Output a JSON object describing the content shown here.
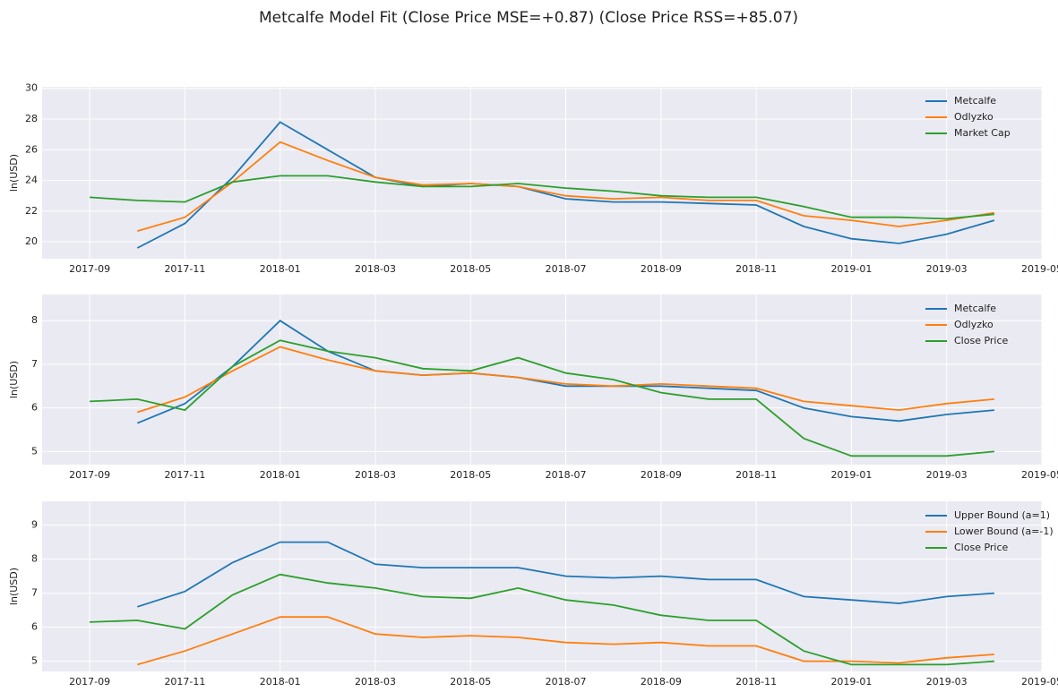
{
  "title": "Metcalfe Model Fit (Close Price MSE=+0.87) (Close Price RSS=+85.07)",
  "chart_data": [
    {
      "type": "line",
      "ylabel": "ln(USD)",
      "x": [
        "2017-09",
        "2017-10",
        "2017-11",
        "2017-12",
        "2018-01",
        "2018-02",
        "2018-03",
        "2018-04",
        "2018-05",
        "2018-06",
        "2018-07",
        "2018-08",
        "2018-09",
        "2018-10",
        "2018-11",
        "2018-12",
        "2019-01",
        "2019-02",
        "2019-03",
        "2019-04"
      ],
      "series": [
        {
          "name": "Metcalfe",
          "color": "#1f77b4",
          "values": [
            null,
            19.6,
            21.2,
            24.2,
            27.8,
            26.0,
            24.2,
            23.6,
            23.8,
            23.6,
            22.8,
            22.6,
            22.6,
            22.5,
            22.4,
            21.0,
            20.2,
            19.9,
            20.5,
            21.4
          ]
        },
        {
          "name": "Odlyzko",
          "color": "#ff7f0e",
          "values": [
            null,
            20.7,
            21.6,
            23.9,
            26.5,
            25.3,
            24.2,
            23.7,
            23.8,
            23.6,
            23.0,
            22.8,
            22.9,
            22.7,
            22.7,
            21.7,
            21.4,
            21.0,
            21.4,
            21.9
          ]
        },
        {
          "name": "Market Cap",
          "color": "#2ca02c",
          "values": [
            22.9,
            22.7,
            22.6,
            23.9,
            24.3,
            24.3,
            23.9,
            23.6,
            23.6,
            23.8,
            23.5,
            23.3,
            23.0,
            22.9,
            22.9,
            22.3,
            21.6,
            21.6,
            21.5,
            21.8
          ]
        }
      ],
      "xlim": [
        "2017-08",
        "2019-05"
      ],
      "xticks": [
        "2017-09",
        "2017-11",
        "2018-01",
        "2018-03",
        "2018-05",
        "2018-07",
        "2018-09",
        "2018-11",
        "2019-01",
        "2019-03",
        "2019-05"
      ],
      "ylim": [
        18.9,
        30.1
      ],
      "yticks": [
        20,
        22,
        24,
        26,
        28,
        30
      ],
      "grid": true,
      "legend": "upper right"
    },
    {
      "type": "line",
      "ylabel": "ln(USD)",
      "x": [
        "2017-09",
        "2017-10",
        "2017-11",
        "2017-12",
        "2018-01",
        "2018-02",
        "2018-03",
        "2018-04",
        "2018-05",
        "2018-06",
        "2018-07",
        "2018-08",
        "2018-09",
        "2018-10",
        "2018-11",
        "2018-12",
        "2019-01",
        "2019-02",
        "2019-03",
        "2019-04"
      ],
      "series": [
        {
          "name": "Metcalfe",
          "color": "#1f77b4",
          "values": [
            null,
            5.65,
            6.1,
            6.95,
            8.0,
            7.3,
            6.85,
            6.75,
            6.8,
            6.7,
            6.5,
            6.5,
            6.5,
            6.45,
            6.4,
            6.0,
            5.8,
            5.7,
            5.85,
            5.95
          ]
        },
        {
          "name": "Odlyzko",
          "color": "#ff7f0e",
          "values": [
            null,
            5.9,
            6.25,
            6.85,
            7.4,
            7.1,
            6.85,
            6.75,
            6.8,
            6.7,
            6.55,
            6.5,
            6.55,
            6.5,
            6.45,
            6.15,
            6.05,
            5.95,
            6.1,
            6.2
          ]
        },
        {
          "name": "Close Price",
          "color": "#2ca02c",
          "values": [
            6.15,
            6.2,
            5.95,
            6.95,
            7.55,
            7.3,
            7.15,
            6.9,
            6.85,
            7.15,
            6.8,
            6.65,
            6.35,
            6.2,
            6.2,
            5.3,
            4.9,
            4.9,
            4.9,
            5.0
          ]
        }
      ],
      "xlim": [
        "2017-08",
        "2019-05"
      ],
      "xticks": [
        "2017-09",
        "2017-11",
        "2018-01",
        "2018-03",
        "2018-05",
        "2018-07",
        "2018-09",
        "2018-11",
        "2019-01",
        "2019-03",
        "2019-05"
      ],
      "ylim": [
        4.7,
        8.6
      ],
      "yticks": [
        5,
        6,
        7,
        8
      ],
      "grid": true,
      "legend": "upper right"
    },
    {
      "type": "line",
      "ylabel": "ln(USD)",
      "x": [
        "2017-09",
        "2017-10",
        "2017-11",
        "2017-12",
        "2018-01",
        "2018-02",
        "2018-03",
        "2018-04",
        "2018-05",
        "2018-06",
        "2018-07",
        "2018-08",
        "2018-09",
        "2018-10",
        "2018-11",
        "2018-12",
        "2019-01",
        "2019-02",
        "2019-03",
        "2019-04"
      ],
      "series": [
        {
          "name": "Upper Bound (a=1)",
          "color": "#1f77b4",
          "values": [
            null,
            6.6,
            7.05,
            7.9,
            8.5,
            8.5,
            7.85,
            7.75,
            7.75,
            7.75,
            7.5,
            7.45,
            7.5,
            7.4,
            7.4,
            6.9,
            6.8,
            6.7,
            6.9,
            7.0
          ]
        },
        {
          "name": "Lower Bound (a=-1)",
          "color": "#ff7f0e",
          "values": [
            null,
            4.9,
            5.3,
            5.8,
            6.3,
            6.3,
            5.8,
            5.7,
            5.75,
            5.7,
            5.55,
            5.5,
            5.55,
            5.45,
            5.45,
            5.0,
            5.0,
            4.95,
            5.1,
            5.2
          ]
        },
        {
          "name": "Close Price",
          "color": "#2ca02c",
          "values": [
            6.15,
            6.2,
            5.95,
            6.95,
            7.55,
            7.3,
            7.15,
            6.9,
            6.85,
            7.15,
            6.8,
            6.65,
            6.35,
            6.2,
            6.2,
            5.3,
            4.9,
            4.9,
            4.9,
            5.0
          ]
        }
      ],
      "xlim": [
        "2017-08",
        "2019-05"
      ],
      "xticks": [
        "2017-09",
        "2017-11",
        "2018-01",
        "2018-03",
        "2018-05",
        "2018-07",
        "2018-09",
        "2018-11",
        "2019-01",
        "2019-03",
        "2019-05"
      ],
      "ylim": [
        4.7,
        9.7
      ],
      "yticks": [
        5,
        6,
        7,
        8,
        9
      ],
      "grid": true,
      "legend": "upper right"
    }
  ]
}
